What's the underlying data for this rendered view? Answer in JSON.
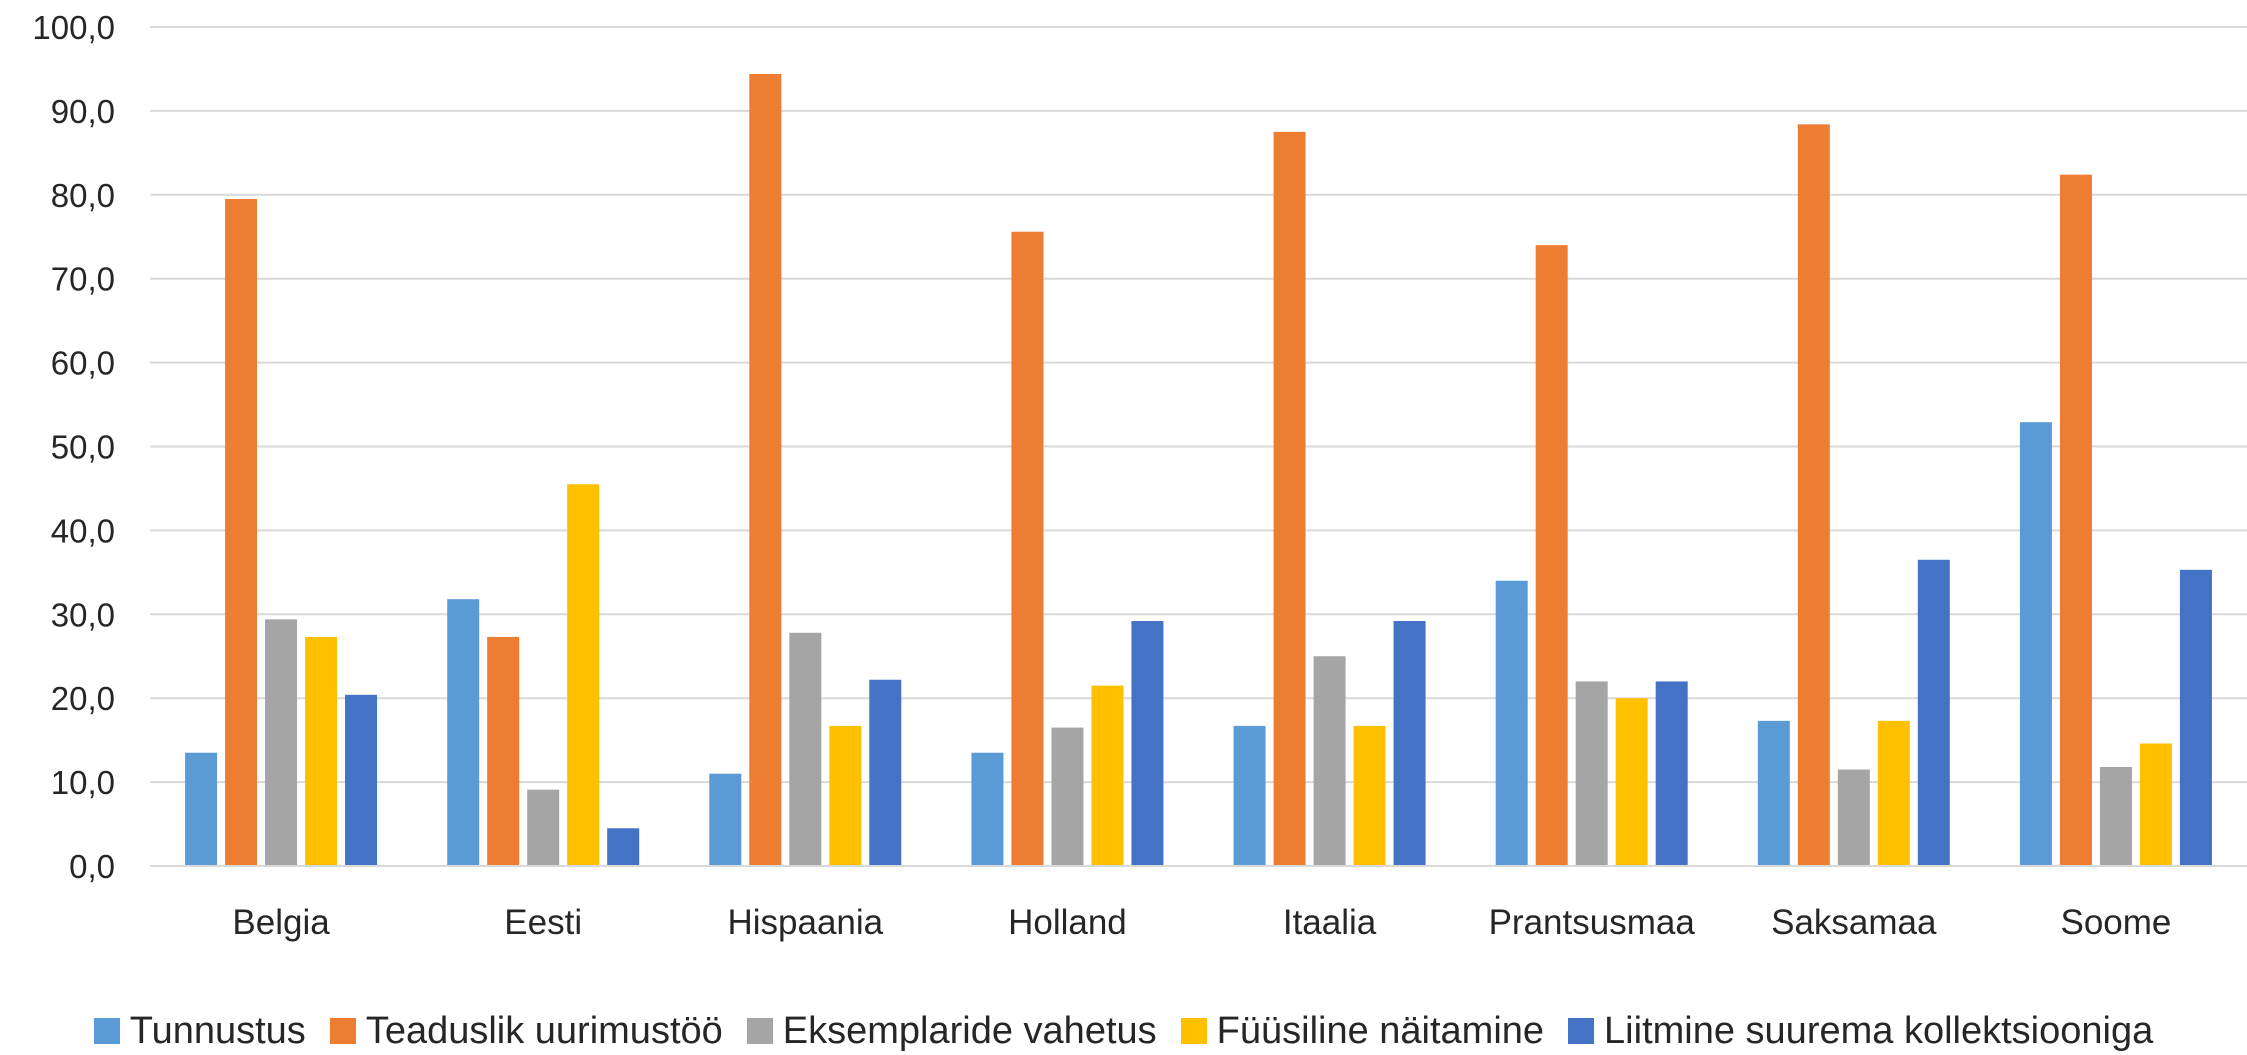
{
  "chart_data": {
    "type": "bar",
    "title": "",
    "xlabel": "",
    "ylabel": "",
    "ylim": [
      0,
      100
    ],
    "yticks": [
      "0,0",
      "10,0",
      "20,0",
      "30,0",
      "40,0",
      "50,0",
      "60,0",
      "70,0",
      "80,0",
      "90,0",
      "100,0"
    ],
    "grid": true,
    "legend_position": "bottom",
    "categories": [
      "Belgia",
      "Eesti",
      "Hispaania",
      "Holland",
      "Itaalia",
      "Prantsusmaa",
      "Saksamaa",
      "Soome"
    ],
    "series": [
      {
        "name": "Tunnustus",
        "color": "#5B9BD5",
        "values": [
          13.5,
          31.8,
          11.0,
          13.5,
          16.7,
          34.0,
          17.3,
          52.9
        ]
      },
      {
        "name": "Teaduslik uurimustöö",
        "color": "#ED7D31",
        "values": [
          79.5,
          27.3,
          94.4,
          75.6,
          87.5,
          74.0,
          88.4,
          82.4
        ]
      },
      {
        "name": "Eksemplaride vahetus",
        "color": "#A5A5A5",
        "values": [
          29.4,
          9.1,
          27.8,
          16.5,
          25.0,
          22.0,
          11.5,
          11.8
        ]
      },
      {
        "name": "Füüsiline näitamine",
        "color": "#FFC000",
        "values": [
          27.3,
          45.5,
          16.7,
          21.5,
          16.7,
          20.0,
          17.3,
          14.6
        ]
      },
      {
        "name": "Liitmine suurema kollektsiooniga",
        "color": "#4472C4",
        "values": [
          20.4,
          4.5,
          22.2,
          29.2,
          29.2,
          22.0,
          36.5,
          35.3
        ]
      }
    ]
  }
}
